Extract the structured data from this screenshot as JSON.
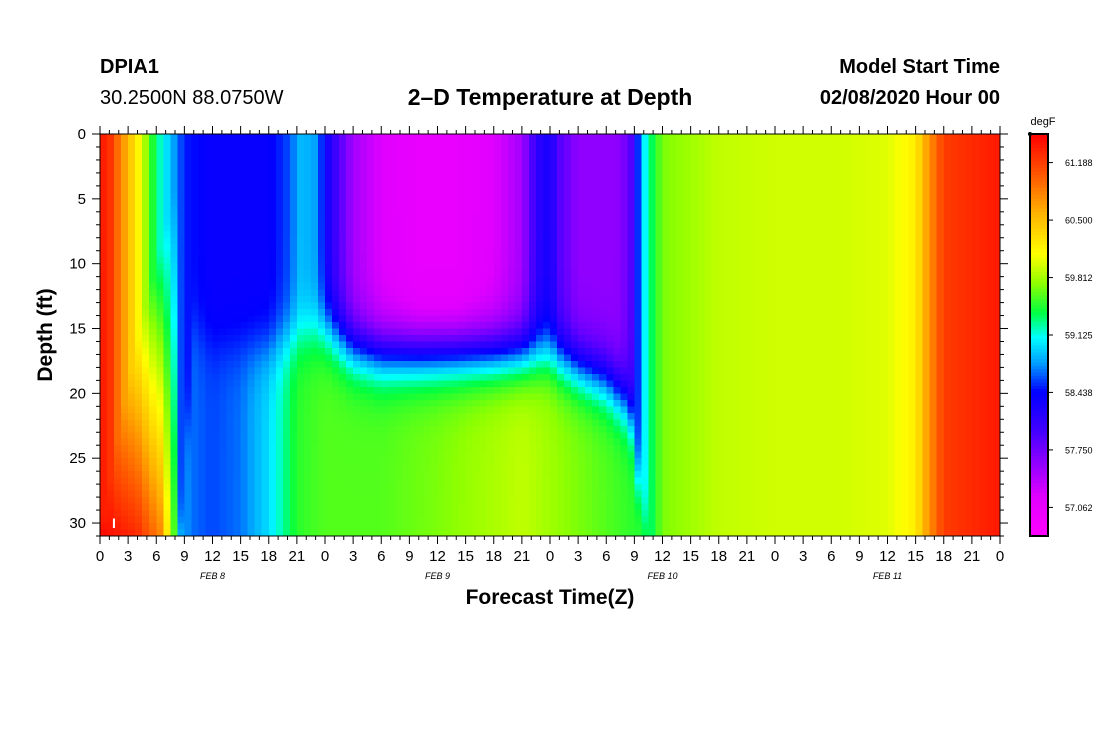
{
  "header": {
    "station": "DPIA1",
    "coords": "30.2500N 88.0750W",
    "title": "2–D Temperature at Depth",
    "model_label": "Model Start Time",
    "model_time": "02/08/2020 Hour 00"
  },
  "chart_data": {
    "type": "heatmap",
    "title": "2–D Temperature at Depth",
    "xlabel": "Forecast Time(Z)",
    "ylabel": "Depth (ft)",
    "x_range_hours": [
      0,
      96
    ],
    "y_range_ft": [
      0,
      31
    ],
    "x_tick_labels": [
      "0",
      "3",
      "6",
      "9",
      "12",
      "15",
      "18",
      "21",
      "0",
      "3",
      "6",
      "9",
      "12",
      "15",
      "18",
      "21",
      "0",
      "3",
      "6",
      "9",
      "12",
      "15",
      "18",
      "21",
      "0",
      "3",
      "6",
      "9",
      "12",
      "15",
      "18",
      "21",
      "0"
    ],
    "y_ticks": [
      0,
      5,
      10,
      15,
      20,
      25,
      30
    ],
    "date_labels": [
      {
        "text": "FEB 8",
        "hour": 12
      },
      {
        "text": "FEB 9",
        "hour": 36
      },
      {
        "text": "FEB 10",
        "hour": 60
      },
      {
        "text": "FEB 11",
        "hour": 84
      }
    ],
    "colorbar": {
      "unit": "degF",
      "range": [
        56.72,
        61.53
      ],
      "tick_values": [
        61.188,
        60.5,
        59.812,
        59.125,
        58.438,
        57.75,
        57.062
      ],
      "tick_labels": [
        "61.188",
        "60.500",
        "59.812",
        "59.125",
        "58.438",
        "57.750",
        "57.062"
      ]
    },
    "marker_label": "I",
    "field_samples": {
      "note": "approximate temperature (degF) by hour, surface → bottom",
      "hour_0": [
        61.4,
        61.4,
        61.5
      ],
      "hour_6": [
        59.3,
        60.4,
        61.2
      ],
      "hour_12": [
        58.5,
        58.5,
        58.8
      ],
      "hour_24": [
        58.4,
        59.3,
        59.6
      ],
      "hour_36": [
        57.1,
        57.5,
        59.7
      ],
      "hour_48": [
        57.4,
        57.8,
        59.4
      ],
      "hour_56": [
        57.7,
        58.2,
        59.3
      ],
      "hour_72": [
        59.9,
        59.9,
        59.9
      ],
      "hour_90": [
        61.2,
        61.2,
        61.2
      ]
    }
  }
}
